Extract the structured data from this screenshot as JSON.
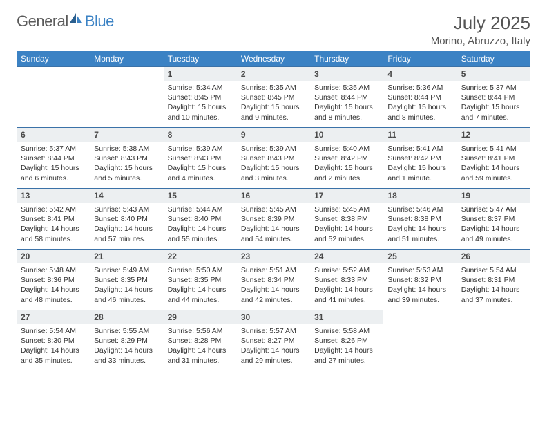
{
  "brand": {
    "general": "General",
    "blue": "Blue"
  },
  "colors": {
    "header_bg": "#3b82c4",
    "header_text": "#ffffff",
    "daynum_bg": "#eceff1",
    "border": "#3b72a8",
    "body_text": "#333333",
    "title_text": "#555555"
  },
  "title": "July 2025",
  "location": "Morino, Abruzzo, Italy",
  "dow": [
    "Sunday",
    "Monday",
    "Tuesday",
    "Wednesday",
    "Thursday",
    "Friday",
    "Saturday"
  ],
  "layout": {
    "first_weekday_index": 2,
    "days_in_month": 31
  },
  "days": {
    "1": {
      "sunrise": "Sunrise: 5:34 AM",
      "sunset": "Sunset: 8:45 PM",
      "daylight": "Daylight: 15 hours and 10 minutes."
    },
    "2": {
      "sunrise": "Sunrise: 5:35 AM",
      "sunset": "Sunset: 8:45 PM",
      "daylight": "Daylight: 15 hours and 9 minutes."
    },
    "3": {
      "sunrise": "Sunrise: 5:35 AM",
      "sunset": "Sunset: 8:44 PM",
      "daylight": "Daylight: 15 hours and 8 minutes."
    },
    "4": {
      "sunrise": "Sunrise: 5:36 AM",
      "sunset": "Sunset: 8:44 PM",
      "daylight": "Daylight: 15 hours and 8 minutes."
    },
    "5": {
      "sunrise": "Sunrise: 5:37 AM",
      "sunset": "Sunset: 8:44 PM",
      "daylight": "Daylight: 15 hours and 7 minutes."
    },
    "6": {
      "sunrise": "Sunrise: 5:37 AM",
      "sunset": "Sunset: 8:44 PM",
      "daylight": "Daylight: 15 hours and 6 minutes."
    },
    "7": {
      "sunrise": "Sunrise: 5:38 AM",
      "sunset": "Sunset: 8:43 PM",
      "daylight": "Daylight: 15 hours and 5 minutes."
    },
    "8": {
      "sunrise": "Sunrise: 5:39 AM",
      "sunset": "Sunset: 8:43 PM",
      "daylight": "Daylight: 15 hours and 4 minutes."
    },
    "9": {
      "sunrise": "Sunrise: 5:39 AM",
      "sunset": "Sunset: 8:43 PM",
      "daylight": "Daylight: 15 hours and 3 minutes."
    },
    "10": {
      "sunrise": "Sunrise: 5:40 AM",
      "sunset": "Sunset: 8:42 PM",
      "daylight": "Daylight: 15 hours and 2 minutes."
    },
    "11": {
      "sunrise": "Sunrise: 5:41 AM",
      "sunset": "Sunset: 8:42 PM",
      "daylight": "Daylight: 15 hours and 1 minute."
    },
    "12": {
      "sunrise": "Sunrise: 5:41 AM",
      "sunset": "Sunset: 8:41 PM",
      "daylight": "Daylight: 14 hours and 59 minutes."
    },
    "13": {
      "sunrise": "Sunrise: 5:42 AM",
      "sunset": "Sunset: 8:41 PM",
      "daylight": "Daylight: 14 hours and 58 minutes."
    },
    "14": {
      "sunrise": "Sunrise: 5:43 AM",
      "sunset": "Sunset: 8:40 PM",
      "daylight": "Daylight: 14 hours and 57 minutes."
    },
    "15": {
      "sunrise": "Sunrise: 5:44 AM",
      "sunset": "Sunset: 8:40 PM",
      "daylight": "Daylight: 14 hours and 55 minutes."
    },
    "16": {
      "sunrise": "Sunrise: 5:45 AM",
      "sunset": "Sunset: 8:39 PM",
      "daylight": "Daylight: 14 hours and 54 minutes."
    },
    "17": {
      "sunrise": "Sunrise: 5:45 AM",
      "sunset": "Sunset: 8:38 PM",
      "daylight": "Daylight: 14 hours and 52 minutes."
    },
    "18": {
      "sunrise": "Sunrise: 5:46 AM",
      "sunset": "Sunset: 8:38 PM",
      "daylight": "Daylight: 14 hours and 51 minutes."
    },
    "19": {
      "sunrise": "Sunrise: 5:47 AM",
      "sunset": "Sunset: 8:37 PM",
      "daylight": "Daylight: 14 hours and 49 minutes."
    },
    "20": {
      "sunrise": "Sunrise: 5:48 AM",
      "sunset": "Sunset: 8:36 PM",
      "daylight": "Daylight: 14 hours and 48 minutes."
    },
    "21": {
      "sunrise": "Sunrise: 5:49 AM",
      "sunset": "Sunset: 8:35 PM",
      "daylight": "Daylight: 14 hours and 46 minutes."
    },
    "22": {
      "sunrise": "Sunrise: 5:50 AM",
      "sunset": "Sunset: 8:35 PM",
      "daylight": "Daylight: 14 hours and 44 minutes."
    },
    "23": {
      "sunrise": "Sunrise: 5:51 AM",
      "sunset": "Sunset: 8:34 PM",
      "daylight": "Daylight: 14 hours and 42 minutes."
    },
    "24": {
      "sunrise": "Sunrise: 5:52 AM",
      "sunset": "Sunset: 8:33 PM",
      "daylight": "Daylight: 14 hours and 41 minutes."
    },
    "25": {
      "sunrise": "Sunrise: 5:53 AM",
      "sunset": "Sunset: 8:32 PM",
      "daylight": "Daylight: 14 hours and 39 minutes."
    },
    "26": {
      "sunrise": "Sunrise: 5:54 AM",
      "sunset": "Sunset: 8:31 PM",
      "daylight": "Daylight: 14 hours and 37 minutes."
    },
    "27": {
      "sunrise": "Sunrise: 5:54 AM",
      "sunset": "Sunset: 8:30 PM",
      "daylight": "Daylight: 14 hours and 35 minutes."
    },
    "28": {
      "sunrise": "Sunrise: 5:55 AM",
      "sunset": "Sunset: 8:29 PM",
      "daylight": "Daylight: 14 hours and 33 minutes."
    },
    "29": {
      "sunrise": "Sunrise: 5:56 AM",
      "sunset": "Sunset: 8:28 PM",
      "daylight": "Daylight: 14 hours and 31 minutes."
    },
    "30": {
      "sunrise": "Sunrise: 5:57 AM",
      "sunset": "Sunset: 8:27 PM",
      "daylight": "Daylight: 14 hours and 29 minutes."
    },
    "31": {
      "sunrise": "Sunrise: 5:58 AM",
      "sunset": "Sunset: 8:26 PM",
      "daylight": "Daylight: 14 hours and 27 minutes."
    }
  }
}
